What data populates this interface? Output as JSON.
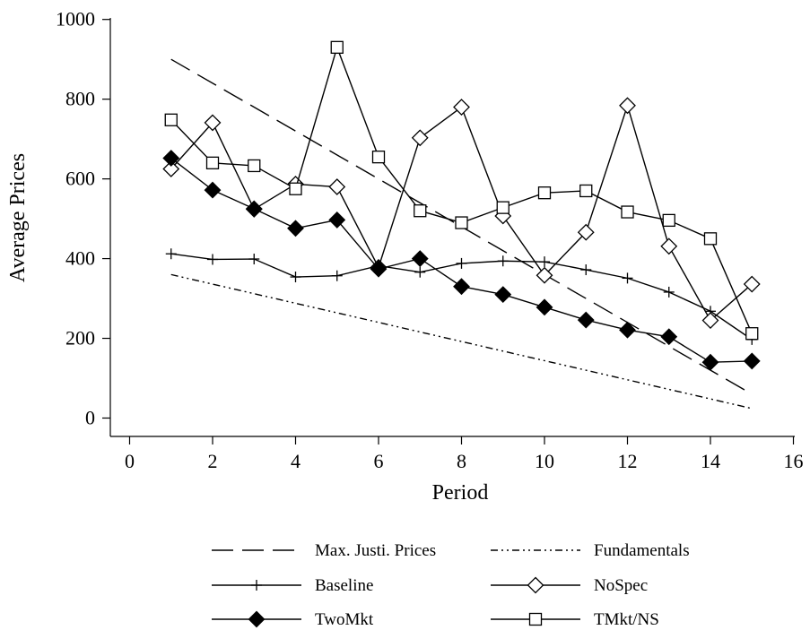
{
  "chart_data": {
    "type": "line",
    "xlabel": "Period",
    "ylabel": "Average Prices",
    "xlim": [
      0,
      16
    ],
    "ylim": [
      0,
      1000
    ],
    "xticks": [
      "0",
      "2",
      "4",
      "6",
      "8",
      "10",
      "12",
      "14",
      "16"
    ],
    "yticks": [
      "0",
      "200",
      "400",
      "600",
      "800",
      "1000"
    ],
    "grid": false,
    "legend_position": "bottom",
    "series": [
      {
        "name": "Max. Justi. Prices",
        "style": "long-dash",
        "marker": "none",
        "x": [
          1,
          15
        ],
        "y": [
          900,
          60
        ]
      },
      {
        "name": "Fundamentals",
        "style": "dash-dot-dot",
        "marker": "none",
        "x": [
          1,
          15
        ],
        "y": [
          360,
          24
        ]
      },
      {
        "name": "Baseline",
        "style": "solid",
        "marker": "plus",
        "x": [
          1,
          2,
          3,
          4,
          5,
          6,
          7,
          8,
          9,
          10,
          11,
          12,
          13,
          14,
          15
        ],
        "y": [
          412,
          398,
          399,
          354,
          357,
          382,
          366,
          388,
          394,
          392,
          372,
          351,
          316,
          268,
          197
        ]
      },
      {
        "name": "NoSpec",
        "style": "solid",
        "marker": "diamond-open",
        "x": [
          1,
          2,
          3,
          4,
          5,
          6,
          7,
          8,
          9,
          10,
          11,
          12,
          13,
          14,
          15
        ],
        "y": [
          625,
          741,
          524,
          587,
          580,
          378,
          703,
          780,
          507,
          358,
          466,
          784,
          431,
          245,
          336
        ]
      },
      {
        "name": "TwoMkt",
        "style": "solid",
        "marker": "diamond-filled",
        "x": [
          1,
          2,
          3,
          4,
          5,
          6,
          7,
          8,
          9,
          10,
          11,
          12,
          13,
          14,
          15
        ],
        "y": [
          652,
          572,
          525,
          476,
          497,
          374,
          400,
          330,
          310,
          278,
          246,
          221,
          204,
          140,
          143
        ]
      },
      {
        "name": "TMkt/NS",
        "style": "solid",
        "marker": "square-open",
        "x": [
          1,
          2,
          3,
          4,
          5,
          6,
          7,
          8,
          9,
          10,
          11,
          12,
          13,
          14,
          15
        ],
        "y": [
          748,
          640,
          633,
          575,
          930,
          655,
          520,
          490,
          528,
          565,
          570,
          517,
          496,
          450,
          212
        ]
      }
    ]
  }
}
